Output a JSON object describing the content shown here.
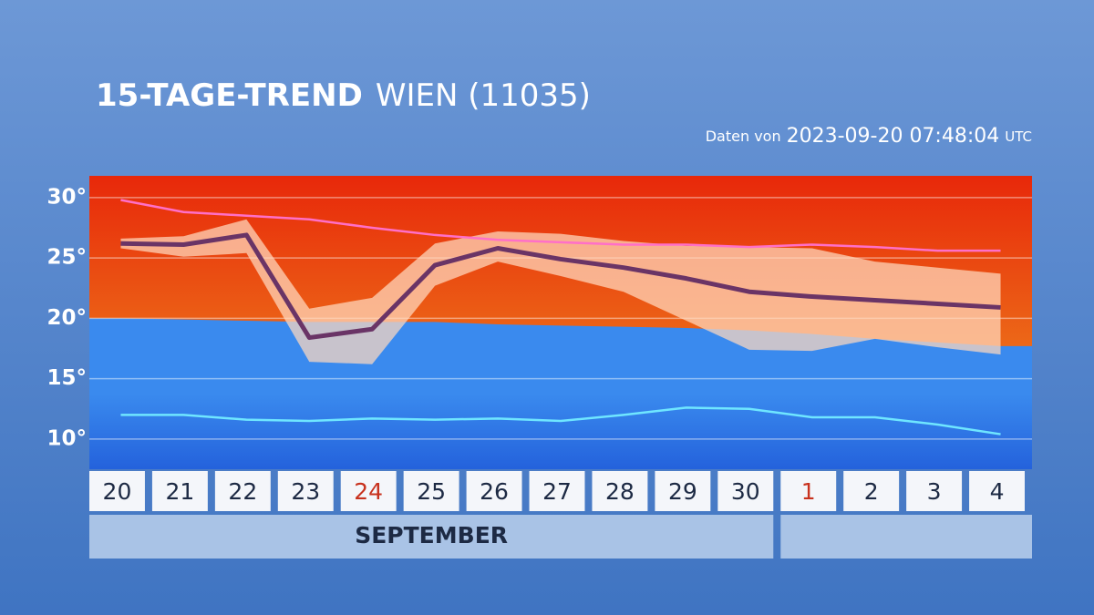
{
  "chart_data": {
    "type": "line",
    "title": "15-TAGE-TREND",
    "subtitle": "WIEN (11035)",
    "source_prefix": "Daten von",
    "timestamp": "2023-09-20 07:48:04",
    "timezone": "UTC",
    "categories": [
      "20",
      "21",
      "22",
      "23",
      "24",
      "25",
      "26",
      "27",
      "28",
      "29",
      "30",
      "1",
      "2",
      "3",
      "4"
    ],
    "category_colors": [
      "#1d2a44",
      "#1d2a44",
      "#1d2a44",
      "#1d2a44",
      "#c8321e",
      "#1d2a44",
      "#1d2a44",
      "#1d2a44",
      "#1d2a44",
      "#1d2a44",
      "#1d2a44",
      "#c8321e",
      "#1d2a44",
      "#1d2a44",
      "#1d2a44"
    ],
    "months": [
      {
        "label": "SEPTEMBER",
        "days": 11
      },
      {
        "label": null,
        "days": 4
      }
    ],
    "ylim": [
      7.5,
      31.8
    ],
    "yticks": [
      {
        "value": 10,
        "label": "10°"
      },
      {
        "value": 15,
        "label": "15°"
      },
      {
        "value": 20,
        "label": "20°"
      },
      {
        "value": 25,
        "label": "25°"
      },
      {
        "value": 30,
        "label": "30°"
      }
    ],
    "grid": true,
    "background": {
      "warm_color": "#ea5a14",
      "cold_color": "#3582e8",
      "values": [
        20.0,
        19.9,
        19.8,
        19.7,
        19.7,
        19.7,
        19.5,
        19.4,
        19.3,
        19.2,
        19.0,
        18.7,
        18.3,
        18.0,
        17.7
      ]
    },
    "band": {
      "color": "#ffd9bf",
      "upper": [
        26.6,
        26.8,
        28.2,
        20.8,
        21.7,
        26.2,
        27.2,
        27.0,
        26.4,
        26.0,
        25.9,
        25.8,
        24.7,
        24.2,
        23.7
      ],
      "lower": [
        25.8,
        25.1,
        25.4,
        16.4,
        16.2,
        22.7,
        24.7,
        23.5,
        22.2,
        19.8,
        17.4,
        17.3,
        18.3,
        17.6,
        17.0
      ]
    },
    "series": [
      {
        "color": "#ff6fc8",
        "values": [
          29.8,
          28.8,
          28.5,
          28.2,
          27.5,
          26.9,
          26.5,
          26.3,
          26.1,
          26.1,
          25.9,
          26.1,
          25.9,
          25.6,
          25.6
        ]
      },
      {
        "color": "#6fe6ff",
        "values": [
          12.0,
          12.0,
          11.6,
          11.5,
          11.7,
          11.6,
          11.7,
          11.5,
          12.0,
          12.6,
          12.5,
          11.8,
          11.8,
          11.2,
          10.4
        ]
      },
      {
        "color": "#6a3466",
        "values": [
          26.2,
          26.1,
          26.9,
          18.4,
          19.1,
          24.4,
          25.8,
          24.9,
          24.2,
          23.3,
          22.2,
          21.8,
          21.5,
          21.2,
          20.9
        ]
      }
    ]
  }
}
